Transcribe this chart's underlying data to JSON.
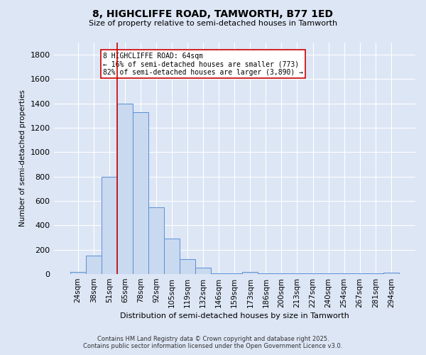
{
  "title_line1": "8, HIGHCLIFFE ROAD, TAMWORTH, B77 1ED",
  "title_line2": "Size of property relative to semi-detached houses in Tamworth",
  "xlabel": "Distribution of semi-detached houses by size in Tamworth",
  "ylabel": "Number of semi-detached properties",
  "bar_labels": [
    "24sqm",
    "38sqm",
    "51sqm",
    "65sqm",
    "78sqm",
    "92sqm",
    "105sqm",
    "119sqm",
    "132sqm",
    "146sqm",
    "159sqm",
    "173sqm",
    "186sqm",
    "200sqm",
    "213sqm",
    "227sqm",
    "240sqm",
    "254sqm",
    "267sqm",
    "281sqm",
    "294sqm"
  ],
  "bar_values": [
    15,
    150,
    800,
    1400,
    1330,
    550,
    290,
    120,
    50,
    5,
    5,
    20,
    5,
    5,
    5,
    5,
    5,
    5,
    5,
    5,
    10
  ],
  "bar_color": "#c9d9f0",
  "bar_edge_color": "#5b8fd4",
  "property_label": "8 HIGHCLIFFE ROAD: 64sqm",
  "annotation_line2": "← 16% of semi-detached houses are smaller (773)",
  "annotation_line3": "82% of semi-detached houses are larger (3,890) →",
  "vline_color": "#cc0000",
  "vline_bar_index": 3,
  "annotation_box_color": "#cc0000",
  "ylim": [
    0,
    1900
  ],
  "yticks": [
    0,
    200,
    400,
    600,
    800,
    1000,
    1200,
    1400,
    1600,
    1800
  ],
  "bg_color": "#dde6f5",
  "grid_color": "#ffffff",
  "footer_line1": "Contains HM Land Registry data © Crown copyright and database right 2025.",
  "footer_line2": "Contains public sector information licensed under the Open Government Licence v3.0."
}
